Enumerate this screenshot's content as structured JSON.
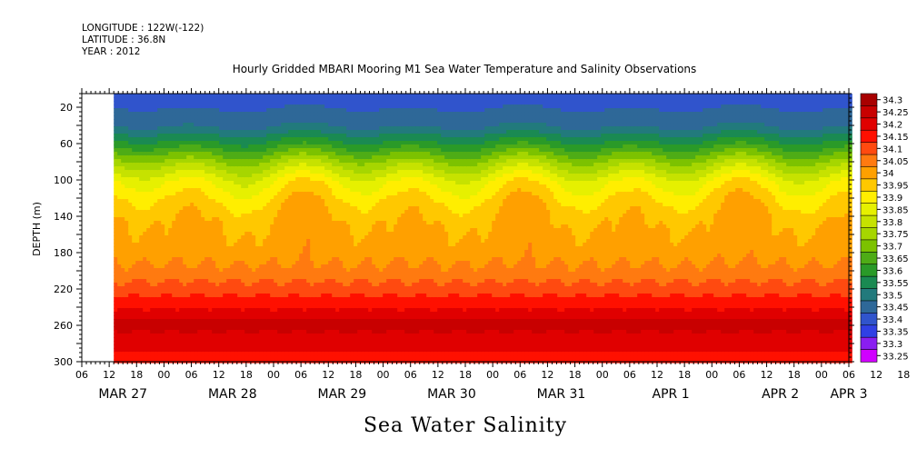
{
  "header": {
    "longitude": "LONGITUDE : 122W(-122)",
    "latitude": "LATITUDE : 36.8N",
    "year": "YEAR : 2012"
  },
  "chart_data": {
    "type": "heatmap",
    "title": "Hourly Gridded MBARI Mooring M1 Sea Water Temperature and Salinity Observations",
    "footer_title": "Sea Water Salinity",
    "ylabel": "DEPTH (m)",
    "y_ticks": [
      20,
      60,
      100,
      140,
      180,
      220,
      260,
      300
    ],
    "ylim": [
      300,
      5
    ],
    "x_hour_ticks": [
      "06",
      "12",
      "18",
      "00",
      "06",
      "12",
      "18",
      "00",
      "06",
      "12",
      "18",
      "00",
      "06",
      "12",
      "18",
      "00",
      "06",
      "12",
      "18",
      "00",
      "06",
      "12",
      "18",
      "00",
      "06",
      "12",
      "18",
      "00",
      "06",
      "12",
      "18",
      "00",
      "06"
    ],
    "x_date_labels": [
      {
        "label": "MAR 27",
        "hour": 15
      },
      {
        "label": "MAR 28",
        "hour": 39
      },
      {
        "label": "MAR 29",
        "hour": 63
      },
      {
        "label": "MAR 30",
        "hour": 87
      },
      {
        "label": "MAR 31",
        "hour": 111
      },
      {
        "label": "APR  1",
        "hour": 135
      },
      {
        "label": "APR  2",
        "hour": 159
      },
      {
        "label": "APR  3",
        "hour": 174
      }
    ],
    "data_start_hour": 13,
    "colorbar_levels": [
      "34.3",
      "34.25",
      "34.2",
      "34.15",
      "34.1",
      "34.05",
      "34",
      "33.95",
      "33.9",
      "33.85",
      "33.8",
      "33.75",
      "33.7",
      "33.65",
      "33.6",
      "33.55",
      "33.5",
      "33.45",
      "33.4",
      "33.35",
      "33.3",
      "33.25"
    ],
    "colorbar_colors": [
      "#a80000",
      "#c80000",
      "#e00000",
      "#ff1000",
      "#ff4a10",
      "#ff7a10",
      "#ffa000",
      "#ffc800",
      "#ffee00",
      "#e6f000",
      "#c6e200",
      "#a6d600",
      "#7cc200",
      "#4eac16",
      "#2a9a28",
      "#1a8a52",
      "#227a7c",
      "#2e6898",
      "#3054cc",
      "#3040e4",
      "#8a1ef0",
      "#d000ff"
    ],
    "salinity_profile": [
      {
        "depth": 5,
        "value": 33.43
      },
      {
        "depth": 20,
        "value": 33.45
      },
      {
        "depth": 40,
        "value": 33.5
      },
      {
        "depth": 60,
        "value": 33.63
      },
      {
        "depth": 80,
        "value": 33.78
      },
      {
        "depth": 100,
        "value": 33.9
      },
      {
        "depth": 120,
        "value": 33.96
      },
      {
        "depth": 140,
        "value": 34.0
      },
      {
        "depth": 180,
        "value": 34.03
      },
      {
        "depth": 200,
        "value": 34.07
      },
      {
        "depth": 220,
        "value": 34.13
      },
      {
        "depth": 240,
        "value": 34.2
      },
      {
        "depth": 255,
        "value": 34.27
      },
      {
        "depth": 270,
        "value": 34.24
      },
      {
        "depth": 300,
        "value": 34.17
      }
    ]
  }
}
